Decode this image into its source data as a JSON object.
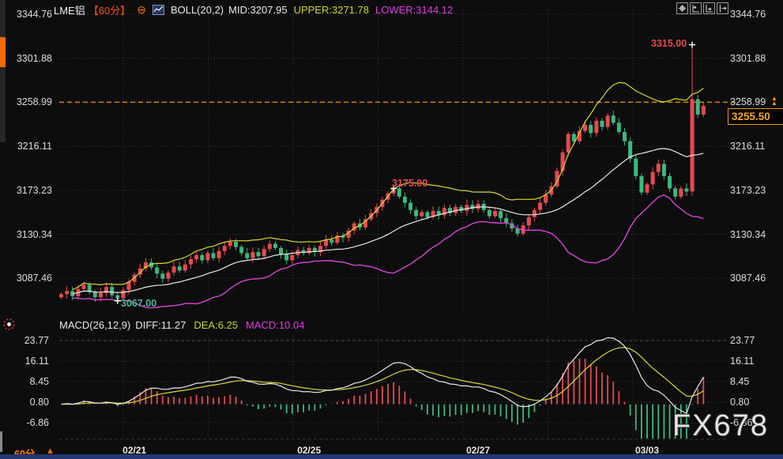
{
  "header": {
    "symbol": "LME铝",
    "period": "【60分】",
    "collapse_icon": "⊖",
    "boll": {
      "name": "BOLL(20,2)",
      "mid": "MID:3207.95",
      "upper": "UPPER:3271.78",
      "lower": "LOWER:3144.12"
    }
  },
  "toolbar": {
    "icons": [
      "crosshair-move",
      "axis-scale-left",
      "axis-scale-right",
      "shift-right"
    ]
  },
  "axes": {
    "price_labels": [
      "3344.76",
      "3301.88",
      "3258.99",
      "3216.11",
      "3173.23",
      "3130.34",
      "3087.46"
    ],
    "macd_labels": [
      "23.77",
      "16.11",
      "8.45",
      "0.80",
      "-6.86"
    ],
    "date_labels": [
      "02/21",
      "02/25",
      "02/27",
      "03/03"
    ]
  },
  "annotations": {
    "high": "3315.00",
    "peak": "3175.00",
    "low": "3067.00"
  },
  "price_tag": {
    "value": "3255.50"
  },
  "macd_header": {
    "name": "MACD(26,12,9)",
    "diff": "DIFF:11.27",
    "dea": "DEA:6.25",
    "macd": "MACD:10.04"
  },
  "footer": {
    "period": "60分"
  },
  "watermark": {
    "text": "FX678"
  },
  "colors": {
    "up": "#e8494f",
    "down": "#3cb87f",
    "boll_upper": "#d8d832",
    "boll_mid": "#e9e9e9",
    "boll_lower": "#d944d9",
    "diff_line": "#e9e9e9",
    "dea_line": "#d8d832",
    "level_line": "#d98400",
    "accent_orange": "#ff4e00",
    "grid": "#3c3c3c",
    "background": "#0d0d0d"
  },
  "chart_data": {
    "type": "candlestick",
    "title": "LME铝 60分",
    "price_axis_ticks": [
      3344.76,
      3301.88,
      3258.99,
      3216.11,
      3173.23,
      3130.34,
      3087.46
    ],
    "macd_axis_ticks": [
      23.77,
      16.11,
      8.45,
      0.8,
      -6.86
    ],
    "x_tick_labels": [
      "02/21",
      "02/25",
      "02/27",
      "03/03"
    ],
    "x_tick_indices": [
      13,
      44,
      74,
      104
    ],
    "last_price": 3255.5,
    "dashed_level": 3258.99,
    "marked_points": {
      "high": {
        "index": 112,
        "price": 3315.0
      },
      "peak": {
        "index": 59,
        "price": 3175.0
      },
      "low": {
        "index": 10,
        "price": 3067.0
      }
    },
    "open_rule": "previous_close",
    "first_open": 3069,
    "closes": [
      3072,
      3075,
      3070,
      3077,
      3081,
      3074,
      3069,
      3073,
      3079,
      3071,
      3068,
      3076,
      3084,
      3091,
      3097,
      3103,
      3098,
      3092,
      3087,
      3093,
      3099,
      3095,
      3101,
      3106,
      3110,
      3105,
      3112,
      3107,
      3114,
      3119,
      3123,
      3118,
      3112,
      3107,
      3113,
      3109,
      3116,
      3121,
      3117,
      3111,
      3105,
      3110,
      3115,
      3112,
      3117,
      3113,
      3119,
      3125,
      3122,
      3129,
      3127,
      3134,
      3141,
      3137,
      3145,
      3151,
      3157,
      3164,
      3170,
      3175,
      3167,
      3161,
      3154,
      3148,
      3152,
      3147,
      3153,
      3149,
      3156,
      3151,
      3157,
      3153,
      3159,
      3155,
      3160,
      3154,
      3148,
      3153,
      3146,
      3141,
      3136,
      3131,
      3139,
      3147,
      3154,
      3161,
      3169,
      3177,
      3192,
      3210,
      3228,
      3221,
      3231,
      3237,
      3229,
      3241,
      3235,
      3246,
      3239,
      3230,
      3221,
      3204,
      3187,
      3171,
      3179,
      3191,
      3199,
      3187,
      3175,
      3167,
      3175,
      3172,
      3262,
      3247,
      3255.5
    ],
    "indicators": {
      "boll": {
        "period": 20,
        "k": 2,
        "mid": 3207.95,
        "upper": 3271.78,
        "lower": 3144.12
      },
      "macd": {
        "params": [
          26,
          12,
          9
        ],
        "diff": 11.27,
        "dea": 6.25,
        "macd": 10.04
      }
    }
  }
}
